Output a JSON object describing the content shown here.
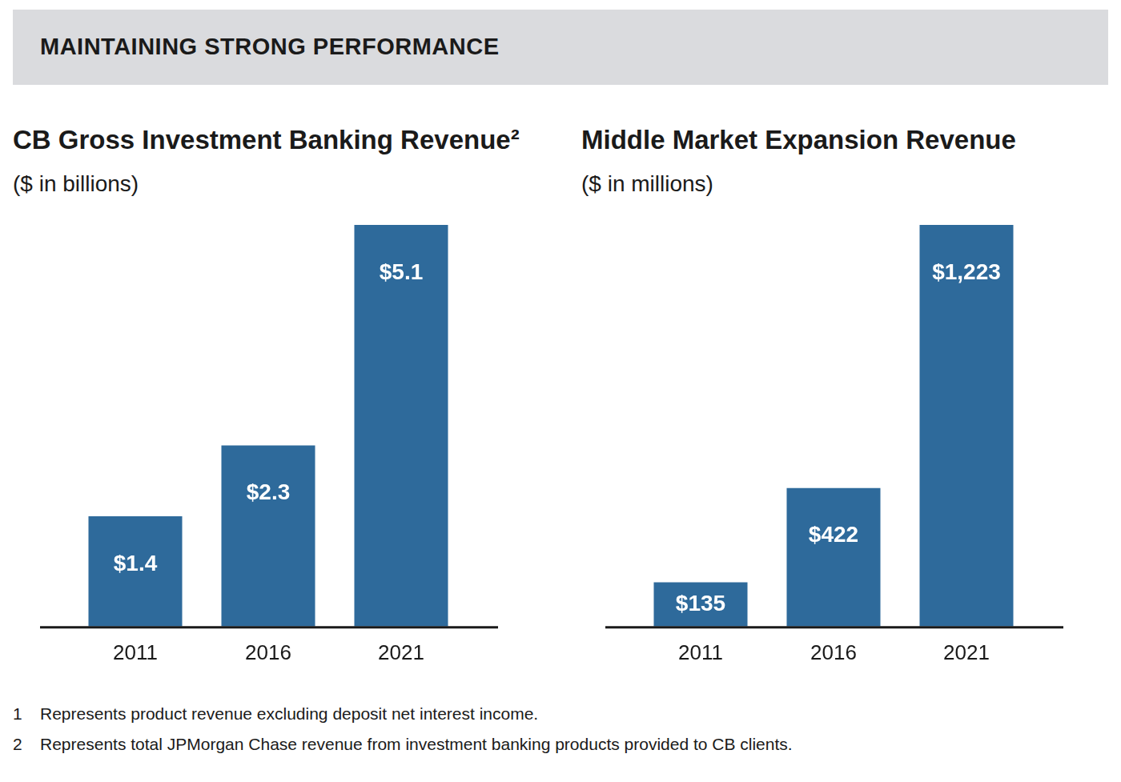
{
  "header": {
    "title": "MAINTAINING STRONG PERFORMANCE"
  },
  "chart_data": [
    {
      "type": "bar",
      "title": "CB Gross Investment Banking Revenue²",
      "subtitle": "($ in billions)",
      "categories": [
        "2011",
        "2016",
        "2021"
      ],
      "values": [
        1.4,
        2.3,
        5.1
      ],
      "value_labels": [
        "$1.4",
        "$2.3",
        "$5.1"
      ],
      "color": "#2e6a9b",
      "ylim": [
        0,
        5.1
      ],
      "data_labels": true,
      "tick_labels": "x",
      "grid": false
    },
    {
      "type": "bar",
      "title": "Middle Market Expansion Revenue",
      "subtitle": "($ in millions)",
      "categories": [
        "2011",
        "2016",
        "2021"
      ],
      "values": [
        135,
        422,
        1223
      ],
      "value_labels": [
        "$135",
        "$422",
        "$1,223"
      ],
      "color": "#2e6a9b",
      "ylim": [
        0,
        1223
      ],
      "data_labels": true,
      "tick_labels": "x",
      "grid": false
    }
  ],
  "footnotes": [
    {
      "marker": "1",
      "text": "Represents product revenue excluding deposit net interest income."
    },
    {
      "marker": "2",
      "text": "Represents total JPMorgan Chase revenue from investment banking products provided to CB clients."
    }
  ]
}
